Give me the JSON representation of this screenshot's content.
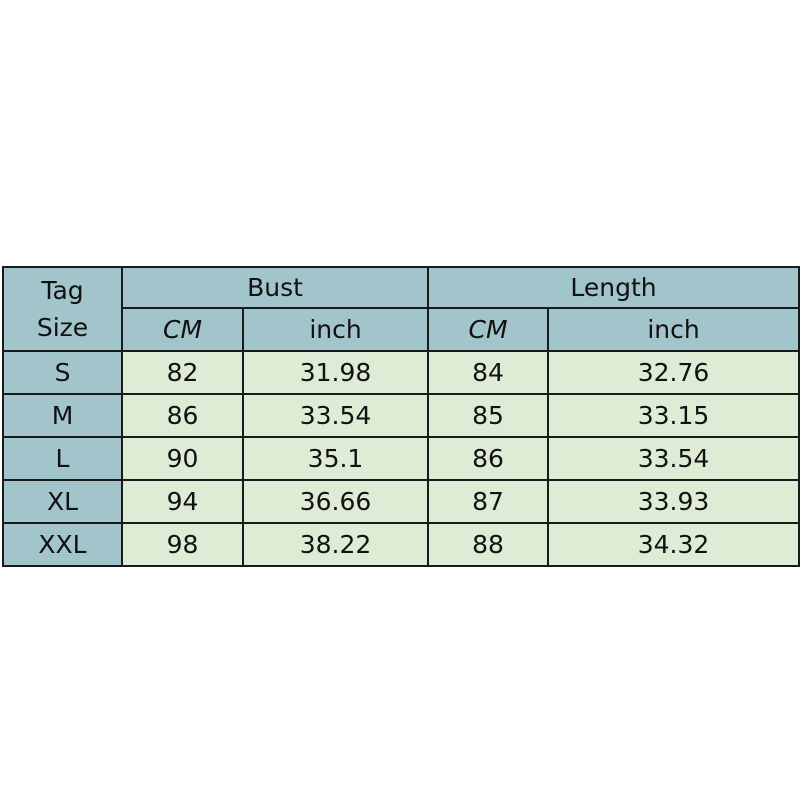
{
  "header": {
    "tag_line1": "Tag",
    "tag_line2": "Size",
    "bust": "Bust",
    "length": "Length",
    "cm": "CM",
    "inch": "inch"
  },
  "rows": [
    {
      "size": "S",
      "bust_cm": "82",
      "bust_inch": "31.98",
      "length_cm": "84",
      "length_inch": "32.76"
    },
    {
      "size": "M",
      "bust_cm": "86",
      "bust_inch": "33.54",
      "length_cm": "85",
      "length_inch": "33.15"
    },
    {
      "size": "L",
      "bust_cm": "90",
      "bust_inch": "35.1",
      "length_cm": "86",
      "length_inch": "33.54"
    },
    {
      "size": "XL",
      "bust_cm": "94",
      "bust_inch": "36.66",
      "length_cm": "87",
      "length_inch": "33.93"
    },
    {
      "size": "XXL",
      "bust_cm": "98",
      "bust_inch": "38.22",
      "length_cm": "88",
      "length_inch": "34.32"
    }
  ],
  "colors": {
    "header_bg": "#a2c4cb",
    "cell_bg": "#deecd6"
  }
}
